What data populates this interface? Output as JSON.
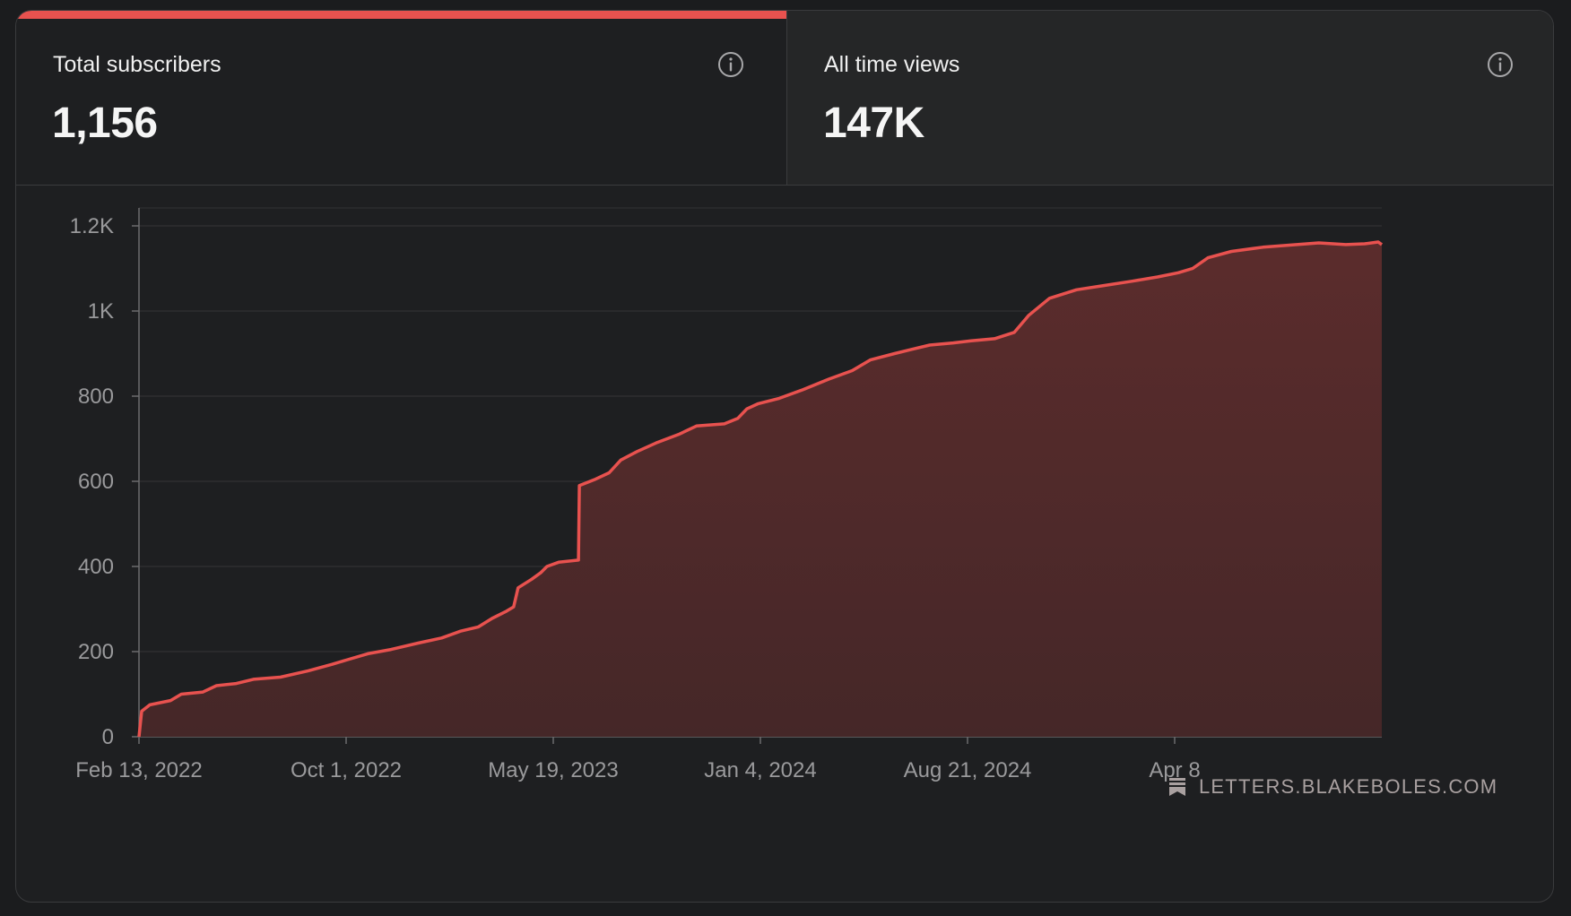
{
  "tabs": [
    {
      "label": "Total subscribers",
      "value": "1,156",
      "active": true
    },
    {
      "label": "All time views",
      "value": "147K",
      "active": false
    }
  ],
  "watermark": "LETTERS.BLAKEBOLES.COM",
  "colors": {
    "accent": "#e8524f",
    "fill_top": "#5b2c2c",
    "fill_bottom": "#452728",
    "background": "#1e1f21"
  },
  "chart_data": {
    "type": "area",
    "ylim": [
      0,
      1200
    ],
    "yticks": [
      0,
      200,
      400,
      600,
      800,
      1000,
      1200
    ],
    "ytick_labels": [
      "0",
      "200",
      "400",
      "600",
      "800",
      "1K",
      "1.2K"
    ],
    "xticks": [
      "Feb 13, 2022",
      "Oct 1, 2022",
      "May 19, 2023",
      "Jan 4, 2024",
      "Aug 21, 2024",
      "Apr 8"
    ],
    "xtick_dates": [
      "2022-02-13",
      "2022-10-01",
      "2023-05-19",
      "2024-01-04",
      "2024-08-21",
      "2025-04-08"
    ],
    "grid": true,
    "series": [
      {
        "points": [
          [
            "2022-02-13",
            0
          ],
          [
            "2022-02-16",
            60
          ],
          [
            "2022-02-25",
            75
          ],
          [
            "2022-03-20",
            85
          ],
          [
            "2022-04-01",
            100
          ],
          [
            "2022-04-25",
            105
          ],
          [
            "2022-05-10",
            120
          ],
          [
            "2022-06-01",
            125
          ],
          [
            "2022-06-20",
            135
          ],
          [
            "2022-07-20",
            140
          ],
          [
            "2022-08-20",
            155
          ],
          [
            "2022-09-15",
            170
          ],
          [
            "2022-10-01",
            180
          ],
          [
            "2022-10-25",
            195
          ],
          [
            "2022-11-20",
            205
          ],
          [
            "2022-12-20",
            220
          ],
          [
            "2023-01-15",
            232
          ],
          [
            "2023-02-05",
            248
          ],
          [
            "2023-02-25",
            258
          ],
          [
            "2023-03-12",
            278
          ],
          [
            "2023-03-28",
            295
          ],
          [
            "2023-04-05",
            305
          ],
          [
            "2023-04-10",
            350
          ],
          [
            "2023-04-25",
            370
          ],
          [
            "2023-05-05",
            385
          ],
          [
            "2023-05-12",
            400
          ],
          [
            "2023-05-25",
            410
          ],
          [
            "2023-06-16",
            415
          ],
          [
            "2023-06-17",
            590
          ],
          [
            "2023-07-05",
            605
          ],
          [
            "2023-07-20",
            620
          ],
          [
            "2023-08-02",
            650
          ],
          [
            "2023-08-20",
            670
          ],
          [
            "2023-09-10",
            690
          ],
          [
            "2023-10-05",
            710
          ],
          [
            "2023-10-25",
            730
          ],
          [
            "2023-11-25",
            735
          ],
          [
            "2023-12-10",
            748
          ],
          [
            "2023-12-20",
            770
          ],
          [
            "2024-01-01",
            782
          ],
          [
            "2024-01-25",
            795
          ],
          [
            "2024-02-20",
            815
          ],
          [
            "2024-03-20",
            840
          ],
          [
            "2024-04-15",
            860
          ],
          [
            "2024-05-05",
            885
          ],
          [
            "2024-06-01",
            900
          ],
          [
            "2024-06-20",
            910
          ],
          [
            "2024-07-10",
            920
          ],
          [
            "2024-08-05",
            925
          ],
          [
            "2024-08-25",
            930
          ],
          [
            "2024-09-20",
            935
          ],
          [
            "2024-10-12",
            950
          ],
          [
            "2024-10-28",
            990
          ],
          [
            "2024-11-20",
            1030
          ],
          [
            "2024-12-20",
            1050
          ],
          [
            "2025-01-20",
            1060
          ],
          [
            "2025-02-20",
            1070
          ],
          [
            "2025-03-20",
            1080
          ],
          [
            "2025-04-12",
            1090
          ],
          [
            "2025-04-28",
            1100
          ],
          [
            "2025-05-15",
            1125
          ],
          [
            "2025-06-10",
            1140
          ],
          [
            "2025-07-15",
            1150
          ],
          [
            "2025-08-15",
            1155
          ],
          [
            "2025-09-15",
            1160
          ],
          [
            "2025-10-15",
            1156
          ],
          [
            "2025-11-05",
            1158
          ],
          [
            "2025-11-20",
            1162
          ],
          [
            "2025-12-10",
            1156
          ]
        ]
      }
    ]
  }
}
